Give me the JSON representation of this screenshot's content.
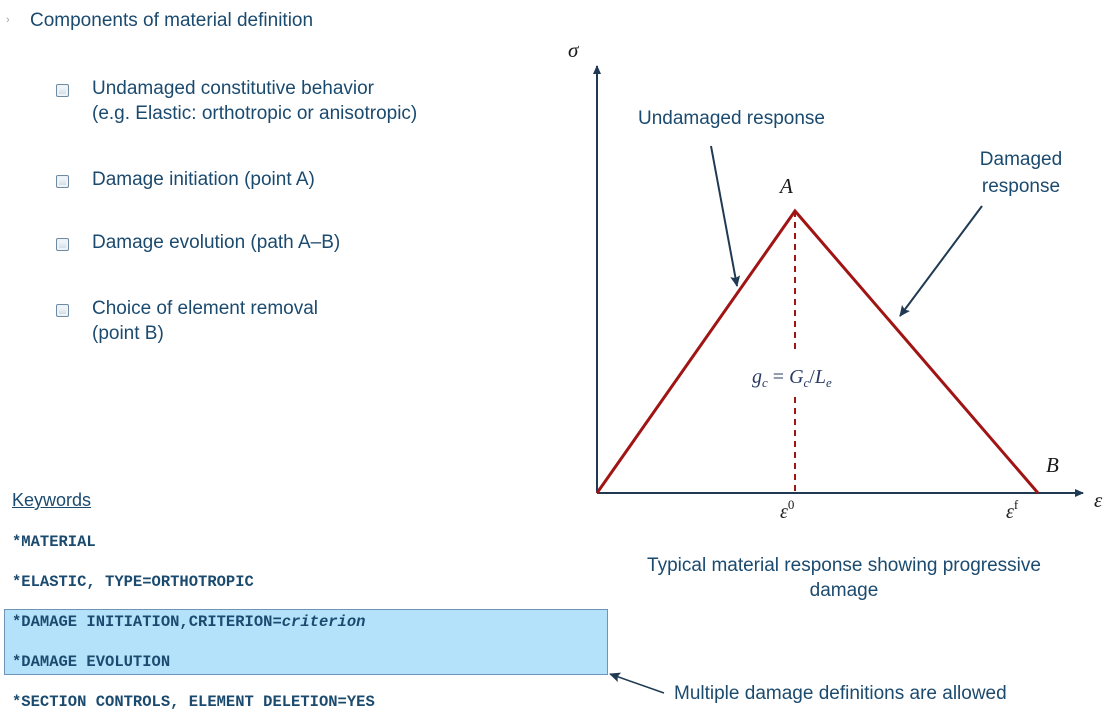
{
  "heading": "Components of material definition",
  "bullets": [
    {
      "line1": "Undamaged constitutive behavior",
      "line2": "(e.g. Elastic: orthotropic or anisotropic)"
    },
    {
      "line1": "Damage initiation (point A)",
      "line2": ""
    },
    {
      "line1": "Damage evolution (path A–B)",
      "line2": ""
    },
    {
      "line1": "Choice of element removal",
      "line2": "(point B)"
    }
  ],
  "keywords": {
    "title": "Keywords",
    "material": "*MATERIAL",
    "elastic": "*ELASTIC, TYPE=ORTHOTROPIC",
    "damage_initiation_prefix": "*DAMAGE INITIATION,CRITERION=",
    "damage_initiation_param": "criterion",
    "damage_evolution": "*DAMAGE EVOLUTION",
    "section_controls": "*SECTION CONTROLS, ELEMENT DELETION=YES"
  },
  "diagram": {
    "y_axis_label": "σ",
    "x_axis_label": "ε",
    "point_a_label": "A",
    "point_b_label": "B",
    "tick_e0": "ε",
    "tick_e0_sup": "0",
    "tick_ef": "ε",
    "tick_ef_sup": "f",
    "undamaged_label": "Undamaged response",
    "damaged_label_line1": "Damaged",
    "damaged_label_line2": "response",
    "formula_g": "g",
    "formula_g_sub": "c",
    "formula_eq": " = ",
    "formula_G": "G",
    "formula_G_sub": "c",
    "formula_slash": "/",
    "formula_L": "L",
    "formula_L_sub": "e",
    "curve_color": "#a01414",
    "axis_color": "#1f3a52"
  },
  "caption_line1": "Typical material response showing progressive",
  "caption_line2": "damage",
  "note": "Multiple damage definitions are allowed"
}
